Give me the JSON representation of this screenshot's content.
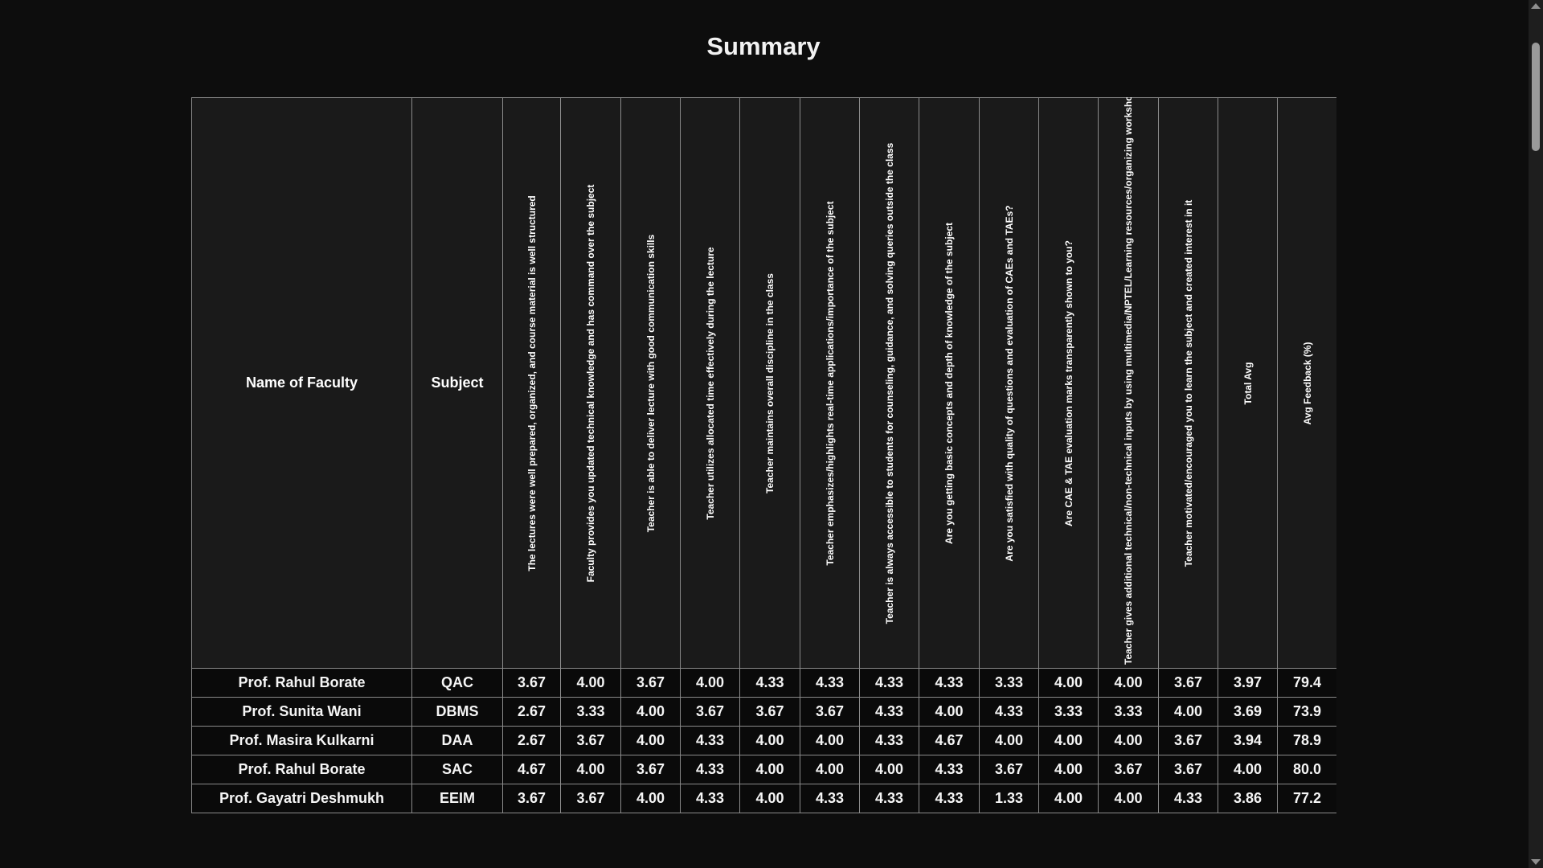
{
  "page": {
    "title": "Summary"
  },
  "table": {
    "header_faculty": "Name of Faculty",
    "header_subject": "Subject",
    "questions": [
      "The lectures were well prepared, organized, and course material is well structured",
      "Faculty provides you updated technical knowledge and has command over the subject",
      "Teacher is able to deliver lecture with good communication skills",
      "Teacher utilizes allocated time effectively during the lecture",
      "Teacher maintains overall discipline in the class",
      "Teacher emphasizes/highlights real-time applications/importance of the subject",
      "Teacher is always accessible to students for counseling, guidance, and solving queries outside the class",
      "Are you getting basic concepts and depth of knowledge of the subject",
      "Are you satisfied with quality of questions and evaluation of CAEs and TAEs?",
      "Are CAE & TAE evaluation marks transparently shown to you?",
      "Teacher gives additional technical/non-technical inputs by using multimedia/NPTEL/Learning resources/organizing workshops",
      "Teacher motivated/encouraged you to learn the subject and created interest in it"
    ],
    "header_total_avg": "Total Avg",
    "header_avg_feedback": "Avg Feedback (%)",
    "rows": [
      {
        "faculty": "Prof. Rahul Borate",
        "subject": "QAC",
        "scores": [
          "3.67",
          "4.00",
          "3.67",
          "4.00",
          "4.33",
          "4.33",
          "4.33",
          "4.33",
          "3.33",
          "4.00",
          "4.00",
          "3.67"
        ],
        "total_avg": "3.97",
        "avg_feedback": "79.4"
      },
      {
        "faculty": "Prof. Sunita Wani",
        "subject": "DBMS",
        "scores": [
          "2.67",
          "3.33",
          "4.00",
          "3.67",
          "3.67",
          "3.67",
          "4.33",
          "4.00",
          "4.33",
          "3.33",
          "3.33",
          "4.00"
        ],
        "total_avg": "3.69",
        "avg_feedback": "73.9"
      },
      {
        "faculty": "Prof. Masira Kulkarni",
        "subject": "DAA",
        "scores": [
          "2.67",
          "3.67",
          "4.00",
          "4.33",
          "4.00",
          "4.00",
          "4.33",
          "4.67",
          "4.00",
          "4.00",
          "4.00",
          "3.67"
        ],
        "total_avg": "3.94",
        "avg_feedback": "78.9"
      },
      {
        "faculty": "Prof. Rahul Borate",
        "subject": "SAC",
        "scores": [
          "4.67",
          "4.00",
          "3.67",
          "4.33",
          "4.00",
          "4.00",
          "4.00",
          "4.33",
          "3.67",
          "4.00",
          "3.67",
          "3.67"
        ],
        "total_avg": "4.00",
        "avg_feedback": "80.0"
      },
      {
        "faculty": "Prof. Gayatri Deshmukh",
        "subject": "EEIM",
        "scores": [
          "3.67",
          "3.67",
          "4.00",
          "4.33",
          "4.00",
          "4.33",
          "4.33",
          "4.33",
          "1.33",
          "4.00",
          "4.00",
          "4.33"
        ],
        "total_avg": "3.86",
        "avg_feedback": "77.2"
      }
    ]
  }
}
